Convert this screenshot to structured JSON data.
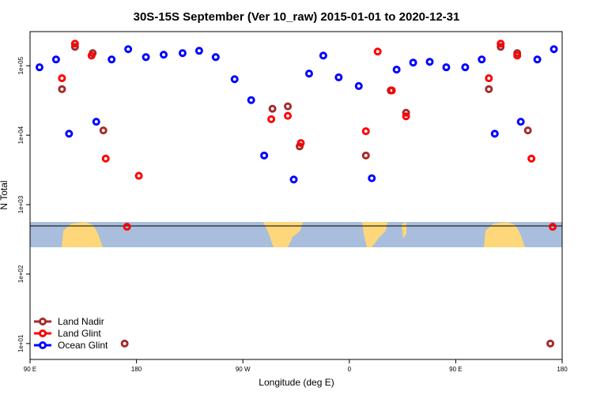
{
  "chart_data": {
    "type": "scatter",
    "title": "30S-15S September (Ver 10_raw)   2015-01-01 to 2020-12-31",
    "x_label": "Longitude (deg E)",
    "y_label": "N Total",
    "xlim": [
      90,
      540
    ],
    "xticks": [
      {
        "value": 90,
        "label": "90 E"
      },
      {
        "value": 180,
        "label": "180"
      },
      {
        "value": 270,
        "label": "90 W"
      },
      {
        "value": 360,
        "label": "0"
      },
      {
        "value": 450,
        "label": "90 E"
      },
      {
        "value": 540,
        "label": "180"
      }
    ],
    "ylim": [
      5.9,
      310000
    ],
    "yticks": [
      {
        "value": 10,
        "label": "1e+01"
      },
      {
        "value": 100,
        "label": "1e+02"
      },
      {
        "value": 1000,
        "label": "1e+03"
      },
      {
        "value": 10000,
        "label": "1e+04"
      },
      {
        "value": 100000,
        "label": "1e+05"
      }
    ],
    "log_y": true,
    "legend_position": "bottom-left",
    "series": [
      {
        "name": "Land Nadir",
        "color": "#a52a2a",
        "x": [
          117,
          128,
          143,
          152,
          170,
          295,
          308,
          318,
          374,
          395,
          408,
          478,
          488,
          502,
          511,
          530
        ],
        "values": [
          46000,
          187000,
          152000,
          11700,
          10,
          24000,
          26000,
          6900,
          5100,
          44000,
          21000,
          46000,
          187000,
          152000,
          11700,
          10
        ]
      },
      {
        "name": "Land Glint",
        "color": "#ff0000",
        "x": [
          117,
          128,
          142,
          154,
          182,
          172,
          294,
          308,
          319,
          374,
          384,
          396,
          408,
          478,
          488,
          502,
          514,
          532
        ],
        "values": [
          66000,
          208000,
          140000,
          4600,
          2600,
          480,
          17000,
          19000,
          7700,
          11400,
          160000,
          44000,
          18700,
          66000,
          208000,
          140000,
          4600,
          480
        ]
      },
      {
        "name": "Ocean Glint",
        "color": "#0000ff",
        "x": [
          98,
          112,
          123,
          146,
          159,
          173,
          188,
          203,
          219,
          233,
          247,
          263,
          277,
          288,
          313,
          326,
          338,
          351,
          368,
          379,
          400,
          414,
          428,
          442,
          458,
          472,
          483,
          505,
          519,
          533
        ],
        "values": [
          95000,
          123000,
          10500,
          15600,
          123000,
          173000,
          133000,
          144000,
          152000,
          164000,
          133000,
          64000,
          32000,
          5100,
          2300,
          77000,
          140000,
          68000,
          51000,
          2400,
          88000,
          111000,
          114000,
          95000,
          95000,
          123000,
          10500,
          15600,
          123000,
          173000
        ]
      }
    ]
  }
}
